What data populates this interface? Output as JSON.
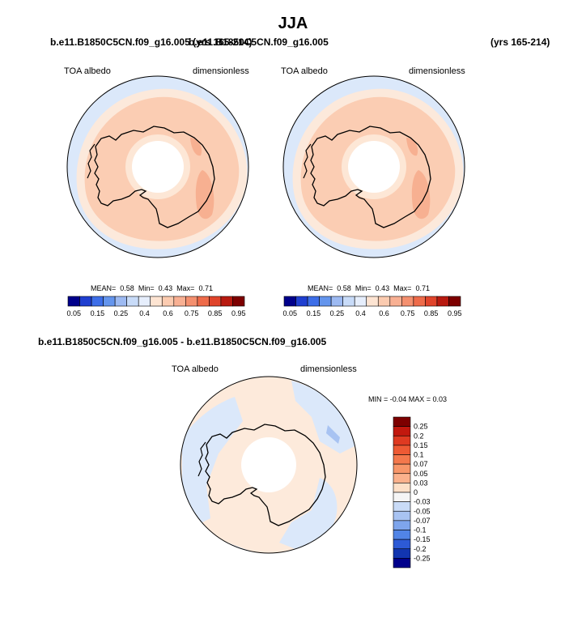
{
  "title": "JJA",
  "panel1": {
    "case": "b.e11.B1850C5CN.f09_g16.005 (yrs 165-214)",
    "variable": "TOA albedo",
    "units": "dimensionless",
    "stats": {
      "mean_label": "MEAN=",
      "mean": "0.58",
      "min_label": "Min=",
      "min": "0.43",
      "max_label": "Max=",
      "max": "0.71"
    }
  },
  "panel2": {
    "case": "b.e11.B1850C5CN.f09_g16.005",
    "years": "(yrs 165-214)",
    "variable": "TOA albedo",
    "units": "dimensionless",
    "stats": {
      "mean_label": "MEAN=",
      "mean": "0.58",
      "min_label": "Min=",
      "min": "0.43",
      "max_label": "Max=",
      "max": "0.71"
    }
  },
  "abs_colorbar": {
    "labels": [
      "0.05",
      "0.15",
      "0.25",
      "0.4",
      "0.6",
      "0.75",
      "0.85",
      "0.95"
    ],
    "colors": [
      "#00008b",
      "#1f3fd0",
      "#3d6ee8",
      "#6495ed",
      "#9dbaf2",
      "#c8dbf8",
      "#e6eefc",
      "#fde4d2",
      "#fbcbb0",
      "#f8b093",
      "#f4906f",
      "#ee6b4a",
      "#e0442b",
      "#b81a10",
      "#7d0000"
    ]
  },
  "diff_panel": {
    "title": "b.e11.B1850C5CN.f09_g16.005 - b.e11.B1850C5CN.f09_g16.005",
    "variable": "TOA albedo",
    "units": "dimensionless",
    "minmax_label": "MIN =  -0.04 MAX =   0.03"
  },
  "diff_colorbar": {
    "labels": [
      "0.25",
      "0.2",
      "0.15",
      "0.1",
      "0.07",
      "0.05",
      "0.03",
      "0",
      "-0.03",
      "-0.05",
      "-0.07",
      "-0.1",
      "-0.15",
      "-0.2",
      "-0.25"
    ],
    "colors": [
      "#7d0000",
      "#c2180e",
      "#df3a21",
      "#ee5a34",
      "#f4784c",
      "#f89669",
      "#fbb18c",
      "#fde0c8",
      "#f5f5f5",
      "#c9dbf7",
      "#a8c3f2",
      "#7ea5ec",
      "#5184e6",
      "#2d5ad6",
      "#1235b0",
      "#00008b"
    ]
  }
}
